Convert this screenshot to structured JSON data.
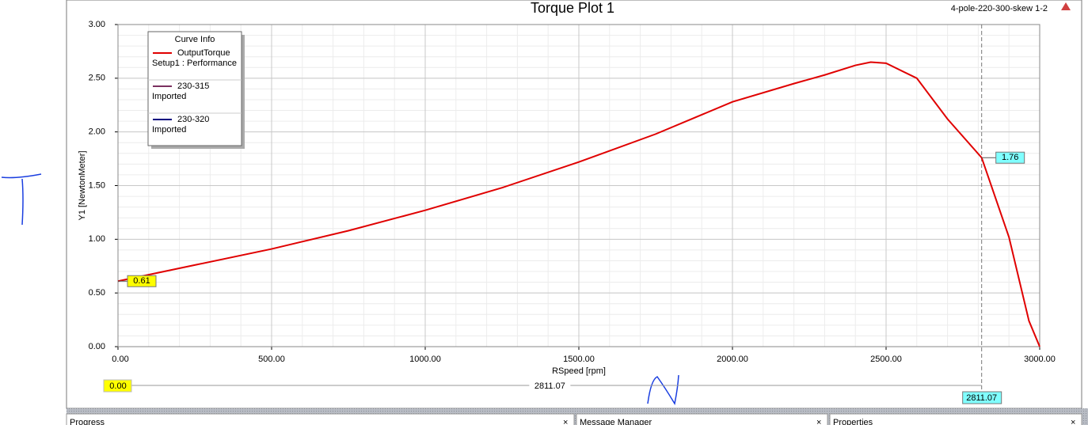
{
  "chart_data": {
    "type": "line",
    "title": "Torque Plot 1",
    "subtitle": "4-pole-220-300-skew 1-2",
    "x_label": "RSpeed [rpm]",
    "y_label": "Y1 [NewtonMeter]",
    "legend_title": "Curve Info",
    "x": [
      0,
      250,
      500,
      750,
      1000,
      1250,
      1500,
      1750,
      2000,
      2200,
      2300,
      2400,
      2450,
      2500,
      2600,
      2700,
      2811.07,
      2900,
      2965,
      3000
    ],
    "series": [
      {
        "name": "OutputTorque",
        "source": "Setup1 : Performance",
        "color": "#e00000",
        "values": [
          0.61,
          0.76,
          0.91,
          1.08,
          1.27,
          1.48,
          1.72,
          1.98,
          2.28,
          2.45,
          2.53,
          2.62,
          2.65,
          2.64,
          2.5,
          2.12,
          1.76,
          1.02,
          0.24,
          0
        ]
      }
    ],
    "other_curves": [
      {
        "name": "230-315",
        "source": "Imported",
        "color": "#7b3060"
      },
      {
        "name": "230-320",
        "source": "Imported",
        "color": "#00007f"
      }
    ],
    "markers": [
      {
        "x": 0,
        "value": 0.61,
        "color": "#ffff00"
      },
      {
        "x": 2811.07,
        "value": 1.76,
        "color": "#80ffff"
      }
    ],
    "cursor": {
      "start": {
        "value": 0,
        "label": "0.00"
      },
      "end": {
        "value": 2811.07,
        "label": "2811.07"
      }
    },
    "xlim": [
      0,
      3000
    ],
    "ylim": [
      0,
      3
    ],
    "xticks": [
      {
        "value": 0,
        "label": "0.00"
      },
      {
        "value": 500,
        "label": "500.00"
      },
      {
        "value": 1000,
        "label": "1000.00"
      },
      {
        "value": 1500,
        "label": "1500.00"
      },
      {
        "value": 2000,
        "label": "2000.00"
      },
      {
        "value": 2500,
        "label": "2500.00"
      },
      {
        "value": 3000,
        "label": "3000.00"
      }
    ],
    "yticks": [
      {
        "value": 0,
        "label": "0.00"
      },
      {
        "value": 0.5,
        "label": "0.50"
      },
      {
        "value": 1,
        "label": "1.00"
      },
      {
        "value": 1.5,
        "label": "1.50"
      },
      {
        "value": 2,
        "label": "2.00"
      },
      {
        "value": 2.5,
        "label": "2.50"
      },
      {
        "value": 3,
        "label": "3.00"
      }
    ],
    "grid": true
  },
  "panels": [
    "Progress",
    "Message Manager",
    "Properties"
  ]
}
